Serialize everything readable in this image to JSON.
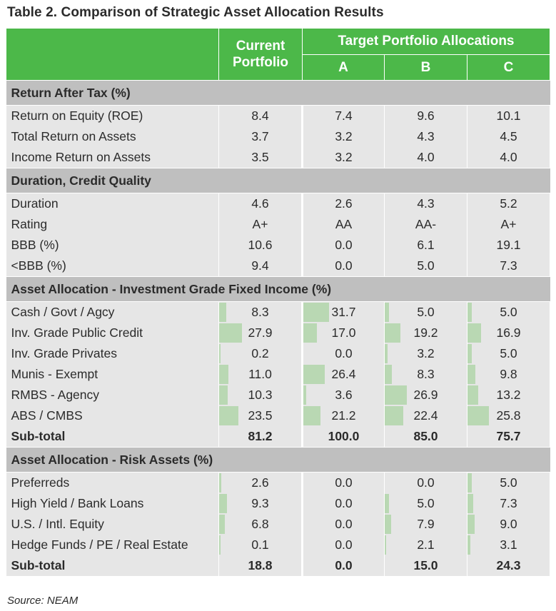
{
  "title": "Table 2. Comparison of Strategic Asset Allocation Results",
  "source": "Source: NEAM",
  "header": {
    "current_line1": "Current",
    "current_line2": "Portfolio",
    "target": "Target Portfolio Allocations",
    "col_a": "A",
    "col_b": "B",
    "col_c": "C"
  },
  "colors": {
    "header_green": "#4cb849",
    "section_gray": "#bfbfbf",
    "row_gray": "#e6e6e6",
    "bar_green": "#b9d8b3"
  },
  "sections": [
    {
      "title": "Return After Tax (%)",
      "rows": [
        {
          "label": "Return on Equity (ROE)",
          "values": [
            "8.4",
            "7.4",
            "9.6",
            "10.1"
          ]
        },
        {
          "label": "Total Return on Assets",
          "values": [
            "3.7",
            "3.2",
            "4.3",
            "4.5"
          ]
        },
        {
          "label": "Income Return on Assets",
          "values": [
            "3.5",
            "3.2",
            "4.0",
            "4.0"
          ]
        }
      ]
    },
    {
      "title": "Duration, Credit Quality",
      "rows": [
        {
          "label": "Duration",
          "values": [
            "4.6",
            "2.6",
            "4.3",
            "5.2"
          ]
        },
        {
          "label": "Rating",
          "values": [
            "A+",
            "AA",
            "AA-",
            "A+"
          ]
        },
        {
          "label": "BBB (%)",
          "values": [
            "10.6",
            "0.0",
            "6.1",
            "19.1"
          ]
        },
        {
          "label": "<BBB (%)",
          "values": [
            "9.4",
            "0.0",
            "5.0",
            "7.3"
          ]
        }
      ]
    },
    {
      "title": "Asset Allocation - Investment Grade Fixed Income (%)",
      "bars": true,
      "rows": [
        {
          "label": "Cash / Govt / Agcy",
          "values": [
            "8.3",
            "31.7",
            "5.0",
            "5.0"
          ]
        },
        {
          "label": "Inv. Grade Public Credit",
          "values": [
            "27.9",
            "17.0",
            "19.2",
            "16.9"
          ]
        },
        {
          "label": "Inv. Grade Privates",
          "values": [
            "0.2",
            "0.0",
            "3.2",
            "5.0"
          ]
        },
        {
          "label": "Munis - Exempt",
          "values": [
            "11.0",
            "26.4",
            "8.3",
            "9.8"
          ]
        },
        {
          "label": "RMBS - Agency",
          "values": [
            "10.3",
            "3.6",
            "26.9",
            "13.2"
          ]
        },
        {
          "label": "ABS / CMBS",
          "values": [
            "23.5",
            "21.2",
            "22.4",
            "25.8"
          ]
        },
        {
          "label": "Sub-total",
          "values": [
            "81.2",
            "100.0",
            "85.0",
            "75.7"
          ],
          "bold": true
        }
      ]
    },
    {
      "title": "Asset Allocation - Risk Assets (%)",
      "bars": true,
      "rows": [
        {
          "label": "Preferreds",
          "values": [
            "2.6",
            "0.0",
            "0.0",
            "5.0"
          ]
        },
        {
          "label": "High Yield / Bank Loans",
          "values": [
            "9.3",
            "0.0",
            "5.0",
            "7.3"
          ]
        },
        {
          "label": "U.S. / Intl. Equity",
          "values": [
            "6.8",
            "0.0",
            "7.9",
            "9.0"
          ]
        },
        {
          "label": "Hedge Funds / PE / Real Estate",
          "values": [
            "0.1",
            "0.0",
            "2.1",
            "3.1"
          ]
        },
        {
          "label": "Sub-total",
          "values": [
            "18.8",
            "0.0",
            "15.0",
            "24.3"
          ],
          "bold": true
        }
      ]
    }
  ]
}
